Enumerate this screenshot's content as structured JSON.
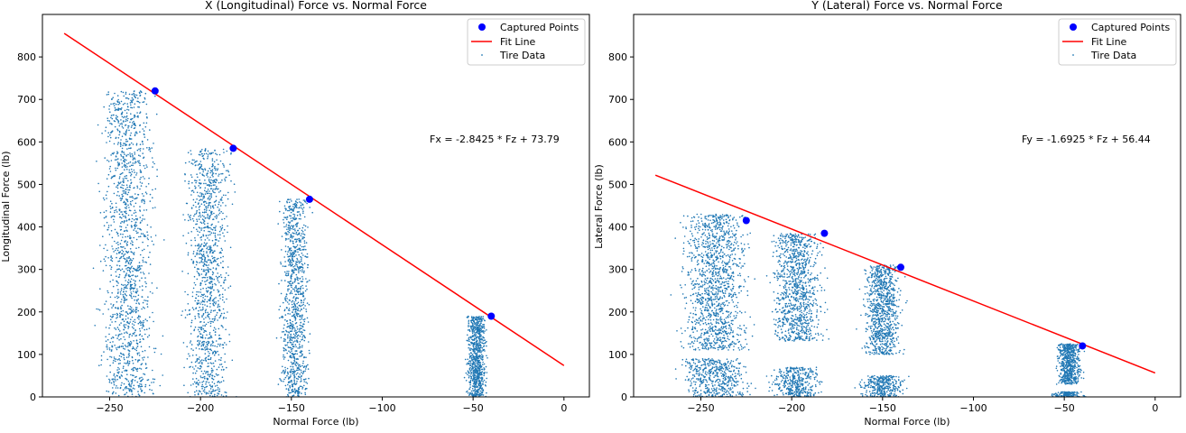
{
  "colors": {
    "captured": "#0000ff",
    "fit": "#ff0000",
    "scatter": "#1f77b4",
    "axes": "#000000",
    "background": "#ffffff"
  },
  "legend": {
    "captured_label": "Captured Points",
    "fit_label": "Fit Line",
    "data_label": "Tire Data",
    "placement": "top-right"
  },
  "chart_data": [
    {
      "type": "scatter",
      "title": "X (Longitudinal) Force vs. Normal Force",
      "xlabel": "Normal Force (lb)",
      "ylabel": "Longitudinal Force (lb)",
      "xlim": [
        -287,
        14
      ],
      "ylim": [
        0,
        900
      ],
      "xticks": [
        -250,
        -200,
        -150,
        -100,
        -50,
        0
      ],
      "xtick_labels": [
        "−250",
        "−200",
        "−150",
        "−100",
        "−50",
        "0"
      ],
      "yticks": [
        0,
        100,
        200,
        300,
        400,
        500,
        600,
        700,
        800
      ],
      "ytick_labels": [
        "0",
        "100",
        "200",
        "300",
        "400",
        "500",
        "600",
        "700",
        "800"
      ],
      "grid": false,
      "legend_placement": "top-right",
      "annotation": "Fx = -2.8425 * Fz + 73.79",
      "annotation_pos": [
        -75,
        600
      ],
      "fit": {
        "slope": -2.8425,
        "intercept": 73.79,
        "x_range": [
          -275,
          0
        ]
      },
      "captured_points": [
        {
          "x": -225,
          "y": 720
        },
        {
          "x": -182,
          "y": 585
        },
        {
          "x": -140,
          "y": 465
        },
        {
          "x": -40,
          "y": 190
        }
      ],
      "clusters": [
        {
          "x_center": -240,
          "x_spread": 13,
          "y_min": 0,
          "y_max": 720,
          "count": 1500
        },
        {
          "x_center": -196,
          "x_spread": 11,
          "y_min": 0,
          "y_max": 585,
          "count": 1200
        },
        {
          "x_center": -148,
          "x_spread": 7,
          "y_min": 0,
          "y_max": 465,
          "count": 1000
        },
        {
          "x_center": -48,
          "x_spread": 5,
          "y_min": 0,
          "y_max": 190,
          "count": 800
        }
      ]
    },
    {
      "type": "scatter",
      "title": "Y (Lateral) Force vs. Normal Force",
      "xlabel": "Normal Force (lb)",
      "ylabel": "Lateral Force (lb)",
      "xlim": [
        -287,
        14
      ],
      "ylim": [
        0,
        900
      ],
      "xticks": [
        -250,
        -200,
        -150,
        -100,
        -50,
        0
      ],
      "xtick_labels": [
        "−250",
        "−200",
        "−150",
        "−100",
        "−50",
        "0"
      ],
      "yticks": [
        0,
        100,
        200,
        300,
        400,
        500,
        600,
        700,
        800
      ],
      "ytick_labels": [
        "0",
        "100",
        "200",
        "300",
        "400",
        "500",
        "600",
        "700",
        "800"
      ],
      "grid": false,
      "legend_placement": "top-right",
      "annotation": "Fy = -1.6925 * Fz + 56.44",
      "annotation_pos": [
        -75,
        600
      ],
      "fit": {
        "slope": -1.6925,
        "intercept": 56.44,
        "x_range": [
          -275,
          0
        ]
      },
      "captured_points": [
        {
          "x": -225,
          "y": 415
        },
        {
          "x": -182,
          "y": 385
        },
        {
          "x": -140,
          "y": 305
        },
        {
          "x": -40,
          "y": 120
        }
      ],
      "clusters": [
        {
          "x_center": -242,
          "x_spread": 16,
          "y_min": 110,
          "y_max": 430,
          "count": 1300
        },
        {
          "x_center": -242,
          "x_spread": 16,
          "y_min": 0,
          "y_max": 90,
          "count": 500
        },
        {
          "x_center": -197,
          "x_spread": 12,
          "y_min": 130,
          "y_max": 385,
          "count": 1000
        },
        {
          "x_center": -197,
          "x_spread": 12,
          "y_min": 0,
          "y_max": 70,
          "count": 400
        },
        {
          "x_center": -150,
          "x_spread": 9,
          "y_min": 100,
          "y_max": 310,
          "count": 900
        },
        {
          "x_center": -150,
          "x_spread": 10,
          "y_min": 0,
          "y_max": 50,
          "count": 350
        },
        {
          "x_center": -47,
          "x_spread": 6,
          "y_min": 30,
          "y_max": 125,
          "count": 600
        },
        {
          "x_center": -48,
          "x_spread": 7,
          "y_min": 0,
          "y_max": 12,
          "count": 150
        }
      ]
    }
  ]
}
